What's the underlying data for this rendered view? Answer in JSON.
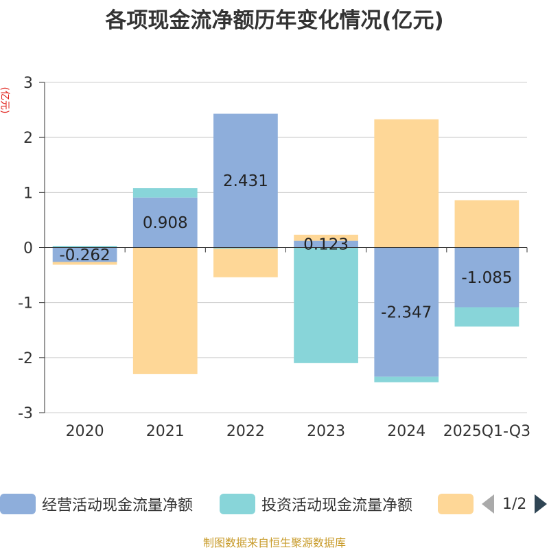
{
  "title": "各项现金流净额历年变化情况(亿元)",
  "y_unit": "(亿元)",
  "source_text": "制图数据来自恒生聚源数据库",
  "pager": {
    "text": "1/2"
  },
  "legend": [
    {
      "label": "经营活动现金流量净额",
      "color": "#8eaedb"
    },
    {
      "label": "投资活动现金流量净额",
      "color": "#88d5d9"
    },
    {
      "label": "",
      "color": "#fed797"
    }
  ],
  "chart_data": {
    "type": "bar",
    "stacked": true,
    "categories": [
      "2020",
      "2021",
      "2022",
      "2023",
      "2024",
      "2025Q1-Q3"
    ],
    "ylim": [
      -3,
      3
    ],
    "yticks": [
      -3,
      -2,
      -1,
      0,
      1,
      2,
      3
    ],
    "grid": true,
    "legend_position": "bottom",
    "series": [
      {
        "name": "经营活动现金流量净额",
        "color": "#8eaedb",
        "values": [
          -0.262,
          0.908,
          2.431,
          0.123,
          -2.347,
          -1.085
        ],
        "show_labels": true
      },
      {
        "name": "投资活动现金流量净额",
        "color": "#88d5d9",
        "values": [
          0.03,
          0.17,
          -0.02,
          -2.1,
          -0.1,
          -0.35
        ],
        "show_labels": false
      },
      {
        "color": "#fed797",
        "values": [
          -0.05,
          -2.3,
          -0.52,
          0.11,
          2.33,
          0.86
        ],
        "show_labels": false
      }
    ]
  }
}
